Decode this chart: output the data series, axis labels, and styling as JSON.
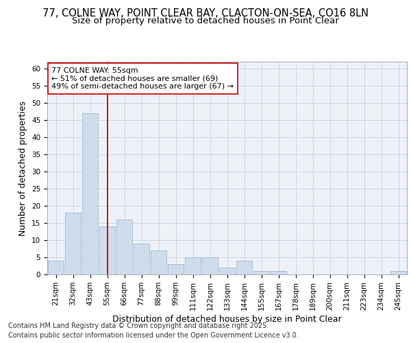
{
  "title_line1": "77, COLNE WAY, POINT CLEAR BAY, CLACTON-ON-SEA, CO16 8LN",
  "title_line2": "Size of property relative to detached houses in Point Clear",
  "xlabel": "Distribution of detached houses by size in Point Clear",
  "ylabel": "Number of detached properties",
  "categories": [
    "21sqm",
    "32sqm",
    "43sqm",
    "55sqm",
    "66sqm",
    "77sqm",
    "88sqm",
    "99sqm",
    "111sqm",
    "122sqm",
    "133sqm",
    "144sqm",
    "155sqm",
    "167sqm",
    "178sqm",
    "189sqm",
    "200sqm",
    "211sqm",
    "223sqm",
    "234sqm",
    "245sqm"
  ],
  "values": [
    4,
    18,
    47,
    14,
    16,
    9,
    7,
    3,
    5,
    5,
    2,
    4,
    1,
    1,
    0,
    0,
    0,
    0,
    0,
    0,
    1
  ],
  "bar_color": "#cfdcec",
  "bar_edgecolor": "#aabdd4",
  "bar_linewidth": 0.7,
  "vline_color": "#cc0000",
  "vline_linewidth": 1.4,
  "vline_x_index": 3,
  "annotation_text": "77 COLNE WAY: 55sqm\n← 51% of detached houses are smaller (69)\n49% of semi-detached houses are larger (67) →",
  "annotation_box_color": "#cc0000",
  "annotation_bg": "#ffffff",
  "ylim": [
    0,
    62
  ],
  "yticks": [
    0,
    5,
    10,
    15,
    20,
    25,
    30,
    35,
    40,
    45,
    50,
    55,
    60
  ],
  "grid_color": "#c8d0dc",
  "bg_color": "#ffffff",
  "plot_bg_color": "#eef2f8",
  "footer_line1": "Contains HM Land Registry data © Crown copyright and database right 2025.",
  "footer_line2": "Contains public sector information licensed under the Open Government Licence v3.0.",
  "title_fontsize": 10.5,
  "subtitle_fontsize": 9.5,
  "axis_label_fontsize": 9,
  "tick_fontsize": 7.5,
  "annotation_fontsize": 8,
  "footer_fontsize": 7
}
